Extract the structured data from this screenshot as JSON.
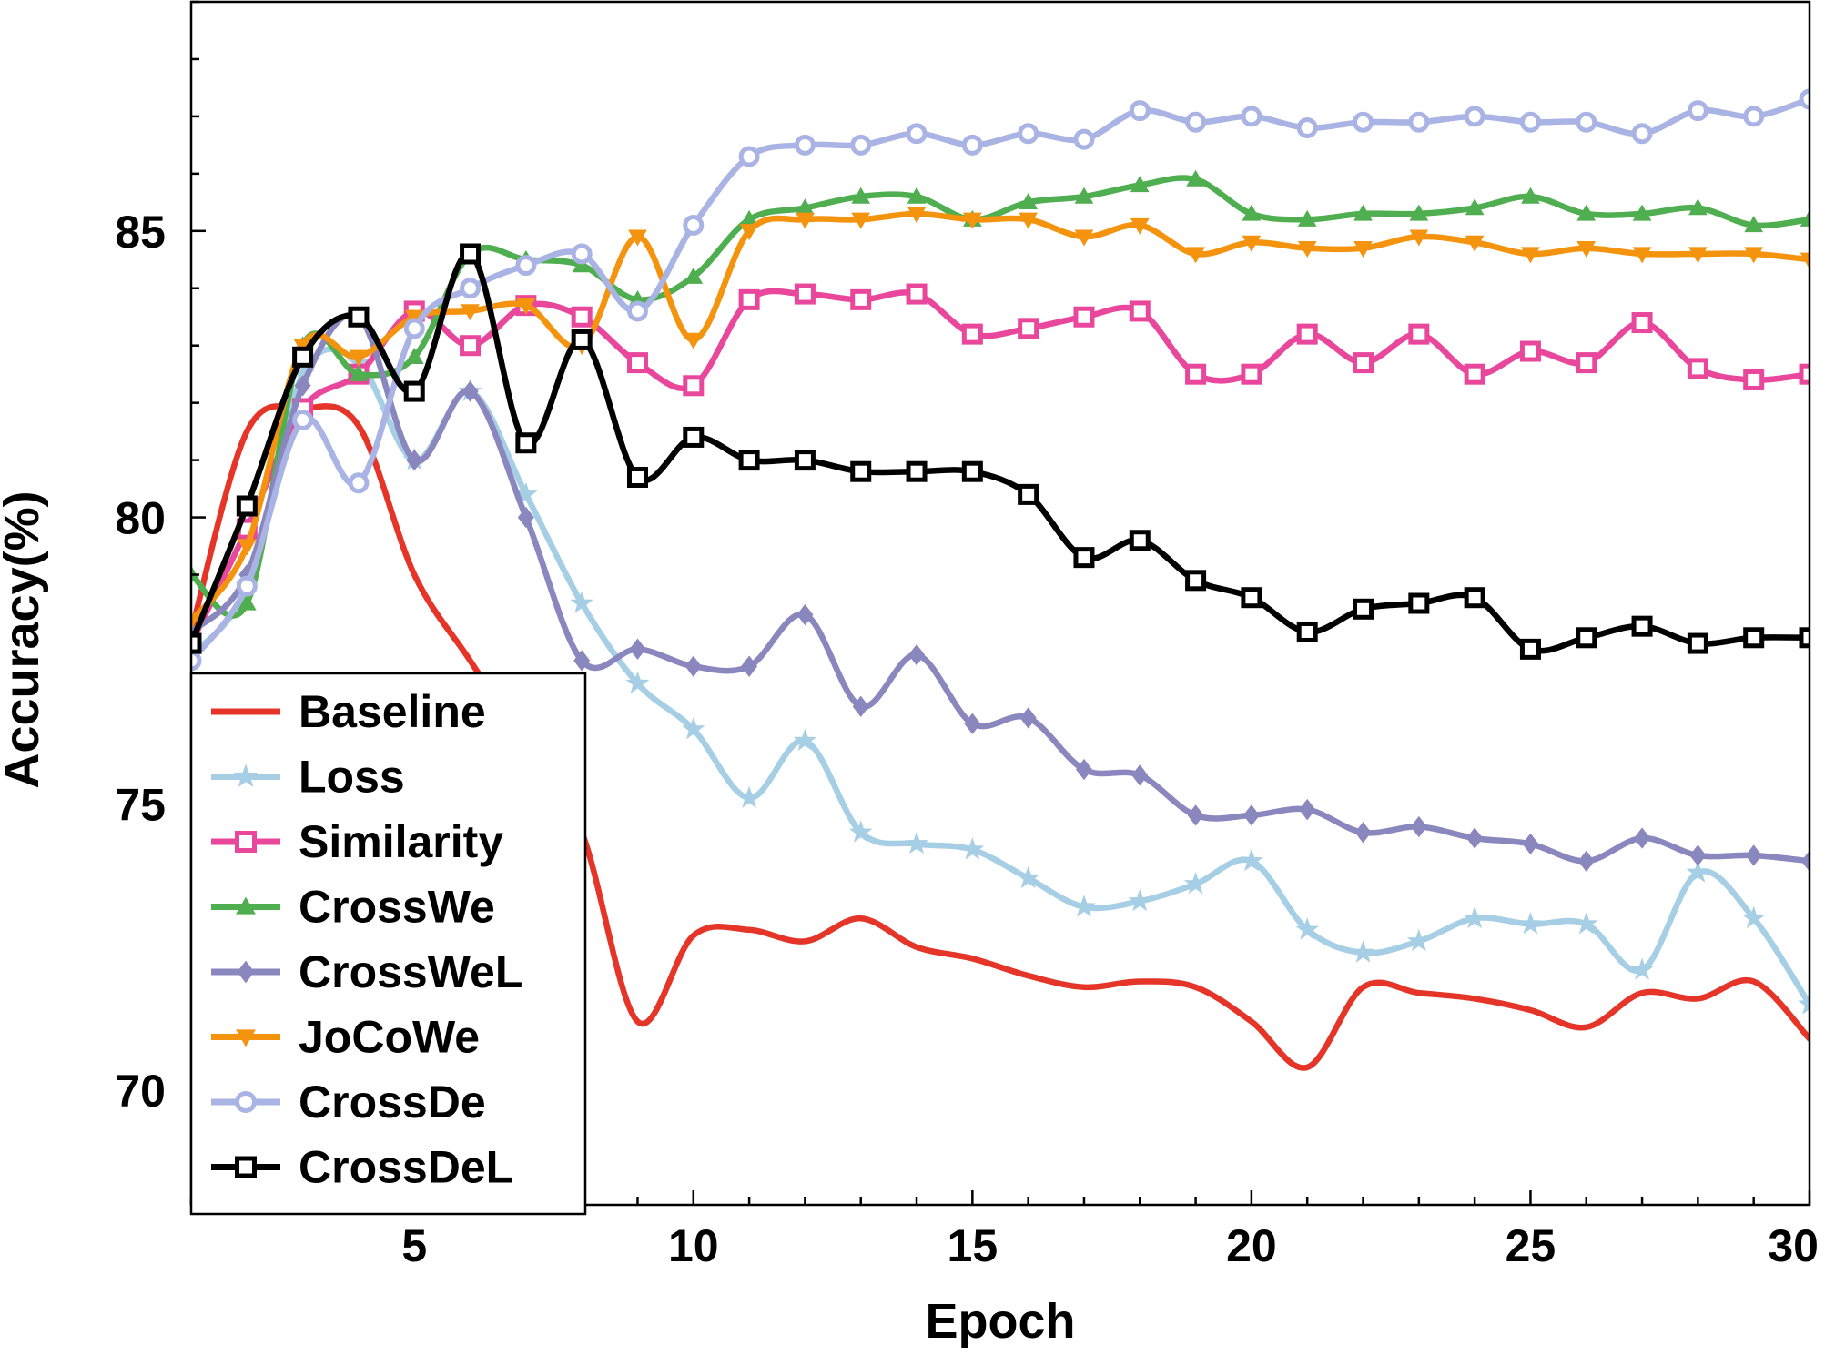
{
  "chart_data": {
    "type": "line",
    "xlabel": "Epoch",
    "ylabel": "Accuracy(%)",
    "xlim": [
      1,
      30
    ],
    "ylim": [
      68,
      89
    ],
    "xticks": [
      5,
      10,
      15,
      20,
      25,
      30
    ],
    "yticks": [
      70,
      75,
      80,
      85
    ],
    "grid": false,
    "legend_position": "lower-left",
    "x": [
      1,
      2,
      3,
      4,
      5,
      6,
      7,
      8,
      9,
      10,
      11,
      12,
      13,
      14,
      15,
      16,
      17,
      18,
      19,
      20,
      21,
      22,
      23,
      24,
      25,
      26,
      27,
      28,
      29,
      30
    ],
    "series": [
      {
        "name": "Baseline",
        "color": "#e53528",
        "marker": "none",
        "values": [
          78.0,
          81.5,
          81.9,
          81.6,
          79.0,
          77.5,
          76.0,
          74.5,
          71.2,
          72.7,
          72.8,
          72.6,
          73.0,
          72.5,
          72.3,
          72.0,
          71.8,
          71.9,
          71.8,
          71.2,
          70.4,
          71.8,
          71.7,
          71.6,
          71.4,
          71.1,
          71.7,
          71.6,
          71.9,
          70.9
        ]
      },
      {
        "name": "Loss",
        "color": "#a6cfe6",
        "marker": "star",
        "values": [
          77.6,
          78.8,
          82.5,
          82.7,
          81.0,
          82.2,
          80.4,
          78.5,
          77.1,
          76.3,
          75.1,
          76.1,
          74.5,
          74.3,
          74.2,
          73.7,
          73.2,
          73.3,
          73.6,
          74.0,
          72.8,
          72.4,
          72.6,
          73.0,
          72.9,
          72.9,
          72.1,
          73.8,
          73.0,
          71.5
        ]
      },
      {
        "name": "Similarity",
        "color": "#e8479c",
        "marker": "square",
        "values": [
          77.8,
          79.8,
          81.9,
          82.5,
          83.6,
          83.0,
          83.7,
          83.5,
          82.7,
          82.3,
          83.8,
          83.9,
          83.8,
          83.9,
          83.2,
          83.3,
          83.5,
          83.6,
          82.5,
          82.5,
          83.2,
          82.7,
          83.2,
          82.5,
          82.9,
          82.7,
          83.4,
          82.6,
          82.4,
          82.5
        ]
      },
      {
        "name": "CrossWe",
        "color": "#4fae4f",
        "marker": "triangle-up",
        "values": [
          79.0,
          78.5,
          83.0,
          82.5,
          82.8,
          84.6,
          84.5,
          84.4,
          83.8,
          84.2,
          85.2,
          85.4,
          85.6,
          85.6,
          85.2,
          85.5,
          85.6,
          85.8,
          85.9,
          85.3,
          85.2,
          85.3,
          85.3,
          85.4,
          85.6,
          85.3,
          85.3,
          85.4,
          85.1,
          85.2
        ]
      },
      {
        "name": "CrossWeL",
        "color": "#8a86be",
        "marker": "diamond",
        "values": [
          78.0,
          79.0,
          82.3,
          83.5,
          81.0,
          82.2,
          80.0,
          77.5,
          77.7,
          77.4,
          77.4,
          78.3,
          76.7,
          77.6,
          76.4,
          76.5,
          75.6,
          75.5,
          74.8,
          74.8,
          74.9,
          74.5,
          74.6,
          74.4,
          74.3,
          74.0,
          74.4,
          74.1,
          74.1,
          74.0
        ]
      },
      {
        "name": "JoCoWe",
        "color": "#f4930e",
        "marker": "triangle-down",
        "values": [
          78.2,
          79.5,
          83.0,
          82.8,
          83.5,
          83.6,
          83.7,
          83.0,
          84.9,
          83.1,
          85.0,
          85.2,
          85.2,
          85.3,
          85.2,
          85.2,
          84.9,
          85.1,
          84.6,
          84.8,
          84.7,
          84.7,
          84.9,
          84.8,
          84.6,
          84.7,
          84.6,
          84.6,
          84.6,
          84.5
        ]
      },
      {
        "name": "CrossDe",
        "color": "#a9b3e4",
        "marker": "circle",
        "values": [
          77.5,
          78.8,
          81.7,
          80.6,
          83.3,
          84.0,
          84.4,
          84.6,
          83.6,
          85.1,
          86.3,
          86.5,
          86.5,
          86.7,
          86.5,
          86.7,
          86.6,
          87.1,
          86.9,
          87.0,
          86.8,
          86.9,
          86.9,
          87.0,
          86.9,
          86.9,
          86.7,
          87.1,
          87.0,
          87.3
        ]
      },
      {
        "name": "CrossDeL",
        "color": "#000000",
        "marker": "square",
        "values": [
          77.8,
          80.2,
          82.8,
          83.5,
          82.2,
          84.6,
          81.3,
          83.1,
          80.7,
          81.4,
          81.0,
          81.0,
          80.8,
          80.8,
          80.8,
          80.4,
          79.3,
          79.6,
          78.9,
          78.6,
          78.0,
          78.4,
          78.5,
          78.6,
          77.7,
          77.9,
          78.1,
          77.8,
          77.9,
          77.9
        ]
      }
    ]
  }
}
